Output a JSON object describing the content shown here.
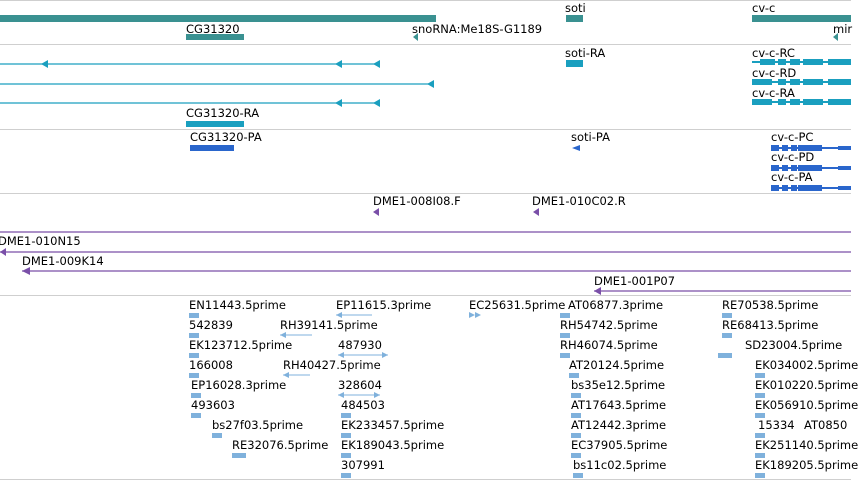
{
  "colors": {
    "gene": "#3a9191",
    "transcript": "#1a9fbf",
    "cds": "#2a66cc",
    "clone": "#7a4fa8",
    "est": "#7fb1dc",
    "separator": "#cfcfcf"
  },
  "tracks": {
    "genes": {
      "labels": [
        "CG31320",
        "snoRNA:Me18S-G1189",
        "soti",
        "cv-c",
        "mir"
      ]
    },
    "transcripts": {
      "labels": [
        "soti-RA",
        "cv-c-RC",
        "cv-c-RD",
        "cv-c-RA",
        "CG31320-RA"
      ]
    },
    "cds": {
      "labels": [
        "CG31320-PA",
        "soti-PA",
        "cv-c-PC",
        "cv-c-PD",
        "cv-c-PA"
      ]
    },
    "clones": {
      "labels": [
        "DME1-008I08.F",
        "DME1-010C02.R",
        "DME1-010N15",
        "DME1-009K14",
        "DME1-001P07"
      ]
    },
    "ests": {
      "labels": [
        "EN11443.5prime",
        "EP11615.3prime",
        "EC25631.5prime",
        "AT06877.3prime",
        "RE70538.5prime",
        "542839",
        "RH39141.5prime",
        "RH54742.5prime",
        "RE68413.5prime",
        "EK123712.5prime",
        "487930",
        "RH46074.5prime",
        "SD23004.5prime",
        "166008",
        "RH40427.5prime",
        "AT20124.5prime",
        "EK034002.5prime",
        "EP16028.3prime",
        "328604",
        "bs35e12.5prime",
        "EK010220.5prime",
        "493603",
        "484503",
        "AT17643.5prime",
        "EK056910.5prime",
        "bs27f03.5prime",
        "EK233457.5prime",
        "AT12442.3prime",
        "15334",
        "AT0850",
        "RE32076.5prime",
        "EK189043.5prime",
        "EC37905.5prime",
        "EK251140.5prime",
        "307991",
        "bs11c02.5prime",
        "EK189205.5prime"
      ]
    }
  }
}
